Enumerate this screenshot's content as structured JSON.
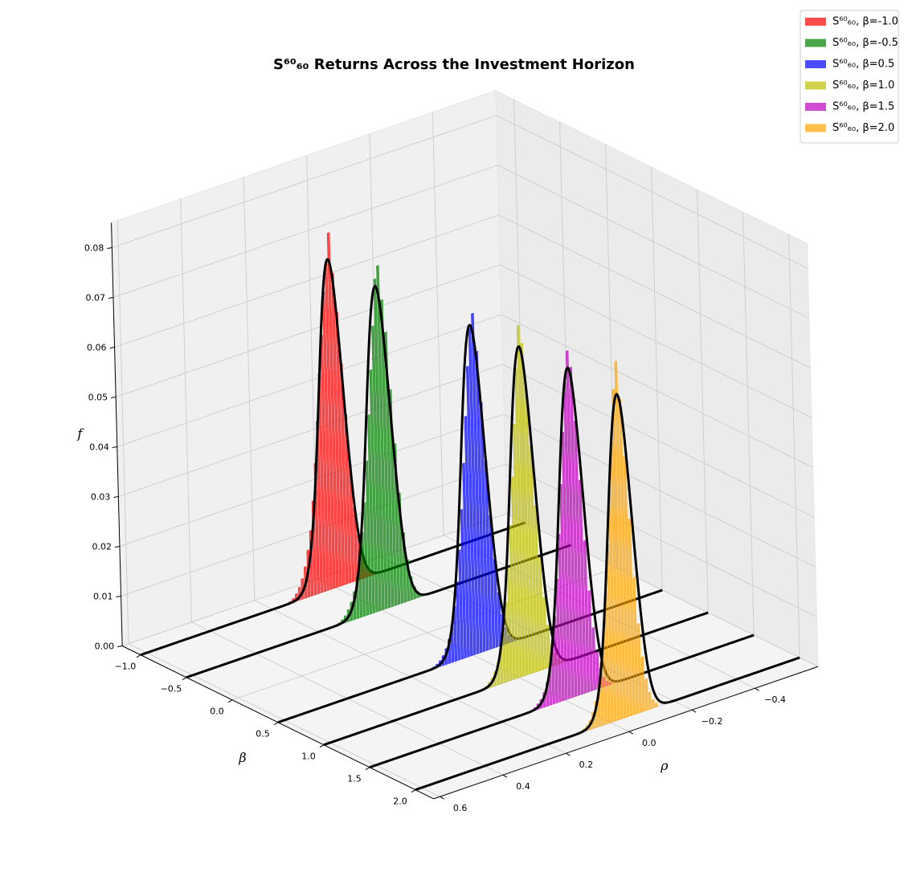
{
  "chart_data": {
    "type": "histogram3d",
    "title": "S⁶⁰₆₀ Returns Across the Investment Horizon",
    "xlabel": "ρ",
    "ylabel": "β",
    "zlabel": "f",
    "xlim": [
      -0.6,
      0.62
    ],
    "ylim": [
      -1.2,
      2.2
    ],
    "zlim": [
      0,
      0.085
    ],
    "xticks": [
      {
        "value": -0.4,
        "label": "−0.4"
      },
      {
        "value": -0.2,
        "label": "−0.2"
      },
      {
        "value": 0,
        "label": "0.0"
      },
      0.2,
      0.4,
      0.6
    ],
    "yticks": [
      {
        "value": -1,
        "label": "−1.0"
      },
      {
        "value": -0.5,
        "label": "−0.5"
      },
      {
        "value": 0,
        "label": "0.0"
      },
      0.5,
      {
        "value": 1,
        "label": "1.0"
      },
      1.5,
      {
        "value": 2,
        "label": "2.0"
      }
    ],
    "zticks": [
      {
        "value": 0,
        "label": "0.00"
      },
      0.01,
      0.02,
      0.03,
      0.04,
      0.05,
      0.06,
      0.07,
      0.08
    ],
    "grid": true,
    "legend": "upper right",
    "bar_alpha": 0.7,
    "bins": [
      -0.15,
      -0.14,
      -0.13,
      -0.12,
      -0.11,
      -0.1,
      -0.09,
      -0.08,
      -0.07,
      -0.06,
      -0.05,
      -0.04,
      -0.03,
      -0.02,
      -0.01,
      0,
      0.01,
      0.02,
      0.03,
      0.04,
      0.05,
      0.06,
      0.07,
      0.08,
      0.09,
      0.1,
      0.11,
      0.12,
      0.13,
      0.14,
      0.15
    ],
    "series": [
      {
        "name": "S⁶⁰₆₀, β=-1.0",
        "color": "#ff0000",
        "beta": -1.0,
        "values": [
          0,
          0.0001,
          0.0003,
          0.0006,
          0.0014,
          0.0028,
          0.0052,
          0.0091,
          0.0148,
          0.0235,
          0.0338,
          0.0441,
          0.0547,
          0.0628,
          0.0712,
          0.0655,
          0.0598,
          0.0512,
          0.0437,
          0.0345,
          0.0262,
          0.0189,
          0.0131,
          0.0094,
          0.0063,
          0.0041,
          0.0026,
          0.0015,
          0.0008,
          0.0004
        ],
        "fit": {
          "mean": 0.0,
          "std": 0.038,
          "peak": 0.066
        }
      },
      {
        "name": "S⁶⁰₆₀, β=-0.5",
        "color": "#008000",
        "beta": -0.5,
        "values": [
          0.0001,
          0.0002,
          0.0005,
          0.0012,
          0.0024,
          0.0046,
          0.0083,
          0.0139,
          0.0221,
          0.0322,
          0.0433,
          0.0551,
          0.0618,
          0.0689,
          0.0664,
          0.0572,
          0.0486,
          0.0398,
          0.0307,
          0.0226,
          0.0168,
          0.0119,
          0.0082,
          0.0056,
          0.0037,
          0.0024,
          0.0014,
          0.0008,
          0.0004,
          0.0002
        ],
        "fit": {
          "mean": -0.005,
          "std": 0.038,
          "peak": 0.065
        }
      },
      {
        "name": "S⁶⁰₆₀, β=0.5",
        "color": "#0000ff",
        "beta": 0.5,
        "values": [
          0.0001,
          0.0003,
          0.0007,
          0.0016,
          0.0033,
          0.0062,
          0.0108,
          0.0177,
          0.0268,
          0.0379,
          0.0497,
          0.0603,
          0.0681,
          0.0653,
          0.0579,
          0.0481,
          0.0389,
          0.0298,
          0.0219,
          0.0157,
          0.0109,
          0.0074,
          0.0049,
          0.0032,
          0.002,
          0.0012,
          0.0007,
          0.0004,
          0.0002,
          0.0001
        ],
        "fit": {
          "mean": -0.015,
          "std": 0.038,
          "peak": 0.066
        }
      },
      {
        "name": "S⁶⁰₆₀, β=1.0",
        "color": "#bfbf00",
        "beta": 1.0,
        "values": [
          0.0002,
          0.0005,
          0.0011,
          0.0024,
          0.0047,
          0.0085,
          0.0143,
          0.0226,
          0.0332,
          0.0455,
          0.0571,
          0.0664,
          0.0702,
          0.0618,
          0.0508,
          0.0404,
          0.0309,
          0.0226,
          0.0159,
          0.0108,
          0.0071,
          0.0046,
          0.0029,
          0.0018,
          0.0011,
          0.0006,
          0.0003,
          0.0002,
          0.0001,
          0
        ],
        "fit": {
          "mean": -0.025,
          "std": 0.038,
          "peak": 0.066
        }
      },
      {
        "name": "S⁶⁰₆₀, β=1.5",
        "color": "#bf00bf",
        "beta": 1.5,
        "values": [
          0.0004,
          0.0009,
          0.0019,
          0.0039,
          0.0073,
          0.0125,
          0.0201,
          0.0304,
          0.0428,
          0.0549,
          0.0659,
          0.0694,
          0.0631,
          0.0535,
          0.0432,
          0.0334,
          0.0246,
          0.0173,
          0.0117,
          0.0076,
          0.0048,
          0.003,
          0.0018,
          0.0011,
          0.0006,
          0.0003,
          0.0002,
          0.0001,
          0,
          0
        ],
        "fit": {
          "mean": -0.035,
          "std": 0.038,
          "peak": 0.066
        }
      },
      {
        "name": "S⁶⁰₆₀, β=2.0",
        "color": "#ffa500",
        "beta": 2.0,
        "values": [
          0.0008,
          0.0017,
          0.0034,
          0.0063,
          0.0109,
          0.0178,
          0.0273,
          0.0393,
          0.0521,
          0.0637,
          0.0716,
          0.0662,
          0.0562,
          0.0458,
          0.0356,
          0.0264,
          0.0188,
          0.0128,
          0.0084,
          0.0053,
          0.0032,
          0.0019,
          0.0011,
          0.0006,
          0.0003,
          0.0002,
          0.0001,
          0,
          0,
          0
        ],
        "fit": {
          "mean": -0.045,
          "std": 0.038,
          "peak": 0.065
        }
      }
    ]
  }
}
